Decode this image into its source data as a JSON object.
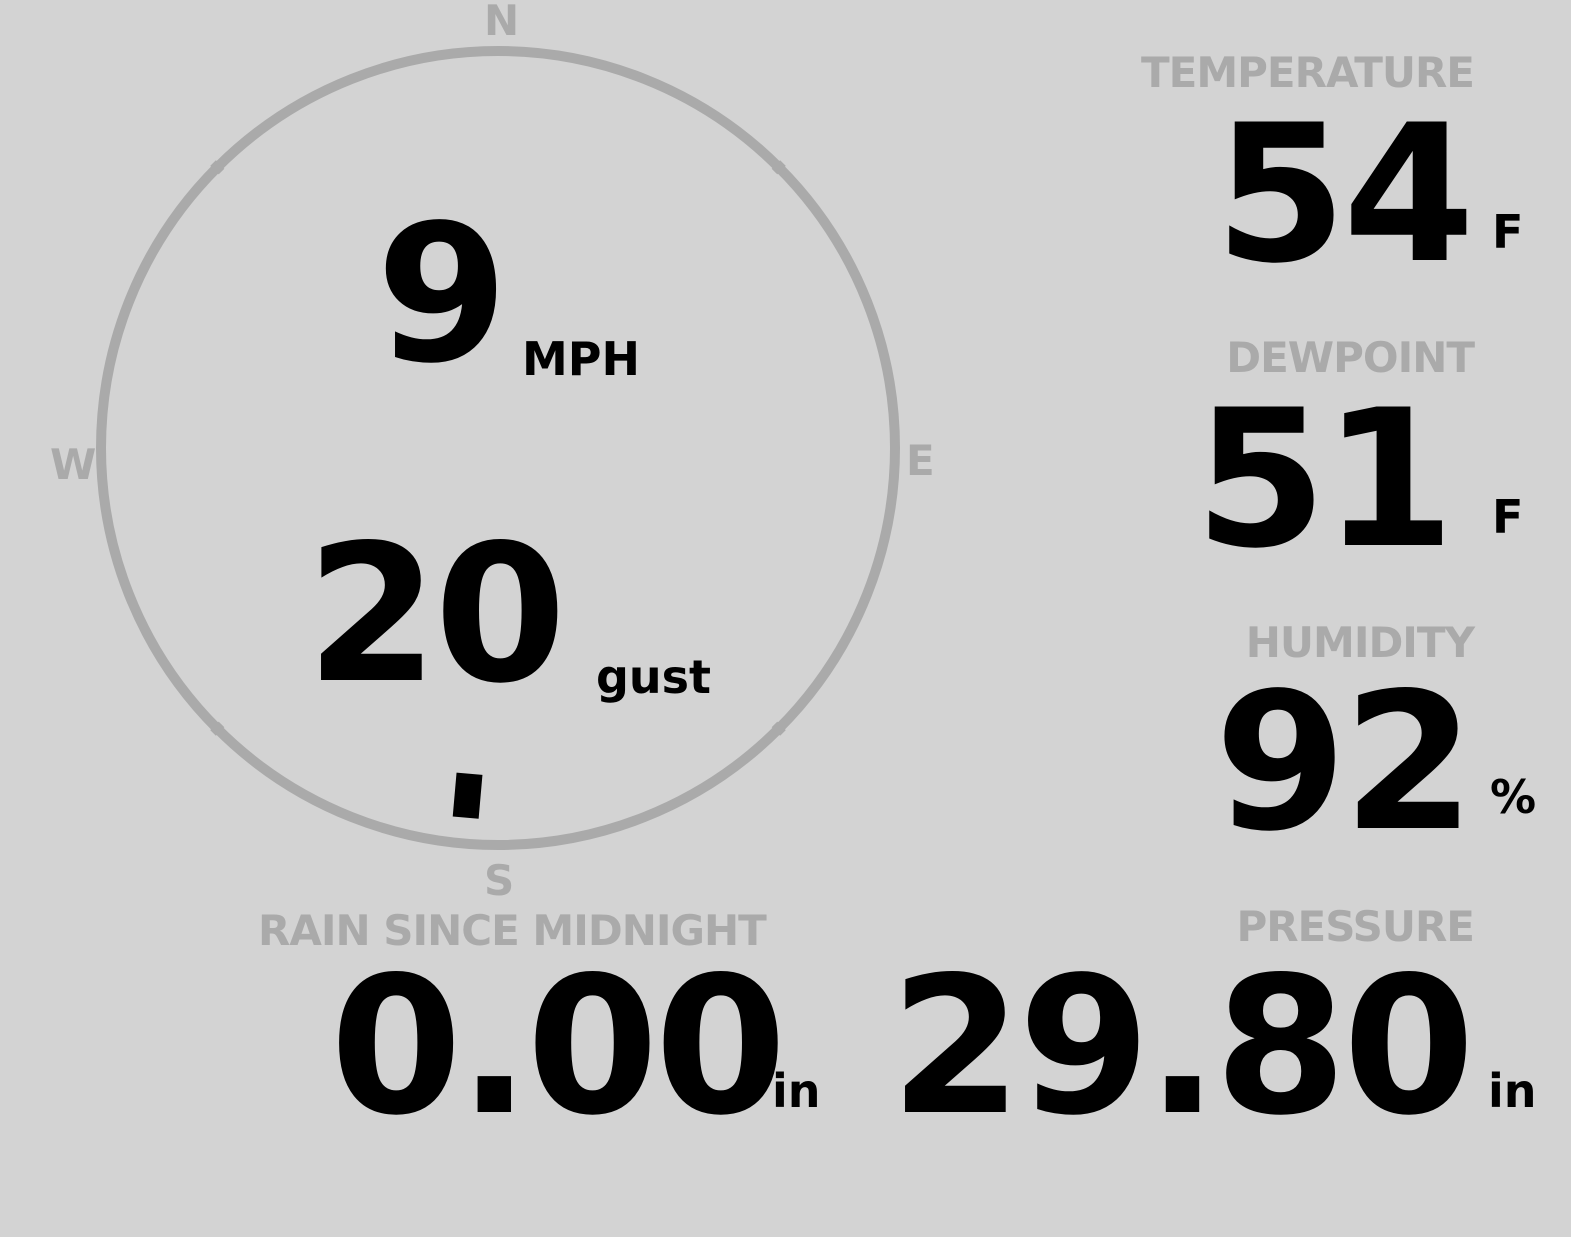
{
  "colors": {
    "background": "#d3d3d3",
    "label": "#aaaaaa",
    "value": "#000000"
  },
  "wind": {
    "compass": {
      "n": "N",
      "s": "S",
      "e": "E",
      "w": "W"
    },
    "direction_degrees": 185,
    "speed": "9",
    "speed_unit": "MPH",
    "gust": "20",
    "gust_unit": "gust"
  },
  "rain": {
    "label": "RAIN SINCE MIDNIGHT",
    "value": "0.00",
    "unit": "in"
  },
  "temperature": {
    "label": "TEMPERATURE",
    "value": "54",
    "unit": "F"
  },
  "dewpoint": {
    "label": "DEWPOINT",
    "value": "51",
    "unit": "F"
  },
  "humidity": {
    "label": "HUMIDITY",
    "value": "92",
    "unit": "%"
  },
  "pressure": {
    "label": "PRESSURE",
    "value": "29.80",
    "unit": "in"
  }
}
